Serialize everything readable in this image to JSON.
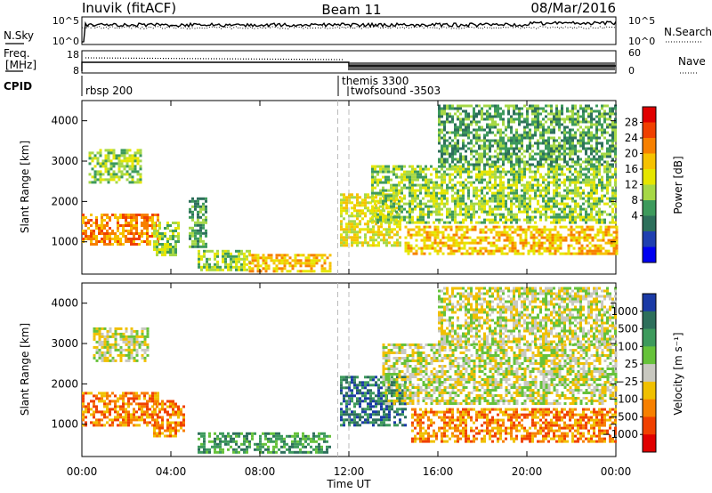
{
  "header": {
    "station": "Inuvik (fitACF)",
    "beam": "Beam 11",
    "date": "08/Mar/2016"
  },
  "scalars": {
    "left_label": "N.Sky",
    "left_ticks": [
      "10^5",
      "10^0"
    ],
    "right_label": "N.Search",
    "right_ticks": [
      "10^5",
      "10^0"
    ]
  },
  "freq_panel": {
    "left_label_1": "Freq.",
    "left_label_2": "[MHz]",
    "left_ticks": [
      "18",
      "8"
    ],
    "right_label": "Nave",
    "right_ticks": [
      "60",
      "0"
    ]
  },
  "cpid": {
    "label": "CPID",
    "programs": [
      {
        "label": "rbsp 200",
        "start_hour": 0.0
      },
      {
        "label": "themis 3300",
        "start_hour": 11.5
      },
      {
        "label": "twofsound -3503",
        "start_hour": 12.0
      }
    ]
  },
  "chart_data": [
    {
      "type": "heatmap",
      "title": "Power",
      "ylabel": "Slant Range [km]",
      "xlabel": "Time UT",
      "xlim": [
        0,
        24
      ],
      "ylim": [
        200,
        4500
      ],
      "x_ticks": [
        "00:00",
        "04:00",
        "08:00",
        "12:00",
        "16:00",
        "20:00",
        "00:00"
      ],
      "y_ticks": [
        1000,
        2000,
        3000,
        4000
      ],
      "colorbar": {
        "label": "Power [dB]",
        "ticks": [
          "28",
          "24",
          "20",
          "16",
          "12",
          "8",
          "4"
        ],
        "colors": [
          "#e00000",
          "#f04000",
          "#f78000",
          "#f6c200",
          "#e6e600",
          "#a6d846",
          "#3d9a5c",
          "#2d6f5b",
          "#1f3fb0",
          "#0000f0"
        ]
      },
      "echo_regions": [
        {
          "t0": 0.0,
          "t1": 3.4,
          "r0": 950,
          "r1": 1700,
          "value": "22"
        },
        {
          "t0": 0.3,
          "t1": 2.6,
          "r0": 2500,
          "r1": 3300,
          "value": "10"
        },
        {
          "t0": 3.2,
          "t1": 4.4,
          "r0": 700,
          "r1": 1500,
          "value": "12"
        },
        {
          "t0": 4.8,
          "t1": 5.6,
          "r0": 900,
          "r1": 2100,
          "value": "8"
        },
        {
          "t0": 5.2,
          "t1": 7.5,
          "r0": 300,
          "r1": 800,
          "value": "10"
        },
        {
          "t0": 7.5,
          "t1": 11.2,
          "r0": 300,
          "r1": 700,
          "value": "20"
        },
        {
          "t0": 11.6,
          "t1": 14.3,
          "r0": 900,
          "r1": 2200,
          "value": "14"
        },
        {
          "t0": 14.5,
          "t1": 24.0,
          "r0": 700,
          "r1": 1400,
          "value": "18"
        },
        {
          "t0": 13.0,
          "t1": 24.0,
          "r0": 1500,
          "r1": 2900,
          "value": "10"
        },
        {
          "t0": 16.0,
          "t1": 24.0,
          "r0": 2900,
          "r1": 4400,
          "value": "6"
        }
      ]
    },
    {
      "type": "heatmap",
      "title": "Velocity",
      "ylabel": "Slant Range [km]",
      "xlabel": "Time UT",
      "xlim": [
        0,
        24
      ],
      "ylim": [
        200,
        4500
      ],
      "x_ticks": [
        "00:00",
        "04:00",
        "08:00",
        "12:00",
        "16:00",
        "20:00",
        "00:00"
      ],
      "y_ticks": [
        1000,
        2000,
        3000,
        4000
      ],
      "colorbar": {
        "label": "Velocity [m s⁻¹]",
        "ticks": [
          "1000",
          "500",
          "100",
          "25",
          "−25",
          "−100",
          "−500",
          "−1000"
        ],
        "colors": [
          "#1a3aa6",
          "#2d6f5b",
          "#3d9a5c",
          "#66c23a",
          "#c8c8c0",
          "#f0c000",
          "#f78000",
          "#f04000",
          "#e00000"
        ]
      },
      "echo_regions": [
        {
          "t0": 0.0,
          "t1": 3.4,
          "r0": 950,
          "r1": 1800,
          "value": "-300"
        },
        {
          "t0": 0.5,
          "t1": 3.0,
          "r0": 2600,
          "r1": 3400,
          "value": "0"
        },
        {
          "t0": 3.2,
          "t1": 4.6,
          "r0": 700,
          "r1": 1600,
          "value": "-200"
        },
        {
          "t0": 5.2,
          "t1": 11.2,
          "r0": 300,
          "r1": 800,
          "value": "100"
        },
        {
          "t0": 11.6,
          "t1": 14.6,
          "r0": 1000,
          "r1": 2200,
          "value": "300"
        },
        {
          "t0": 14.8,
          "t1": 24.0,
          "r0": 600,
          "r1": 1400,
          "value": "-300"
        },
        {
          "t0": 13.5,
          "t1": 24.0,
          "r0": 1500,
          "r1": 3000,
          "value": "0"
        },
        {
          "t0": 16.0,
          "t1": 24.0,
          "r0": 3000,
          "r1": 4400,
          "value": "0"
        }
      ]
    }
  ]
}
